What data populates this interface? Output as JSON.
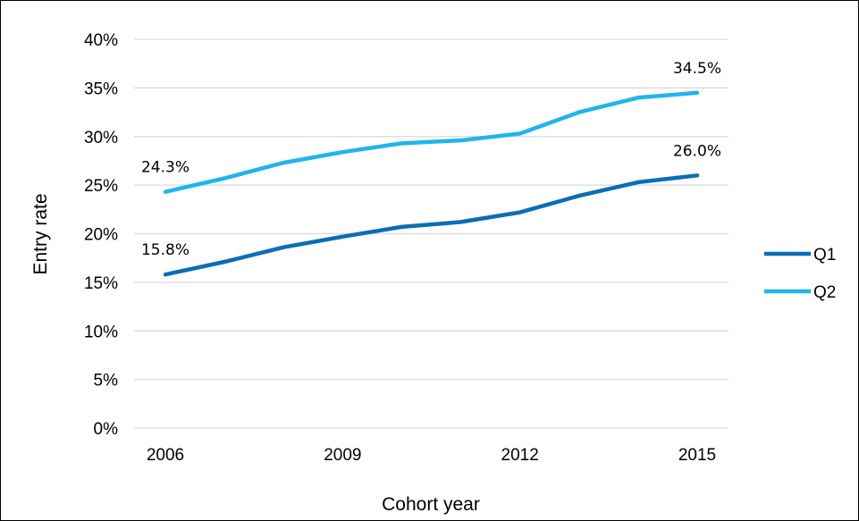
{
  "chart_data": {
    "type": "line",
    "title": "",
    "xlabel": "Cohort year",
    "ylabel": "Entry rate",
    "x": [
      2006,
      2007,
      2008,
      2009,
      2010,
      2011,
      2012,
      2013,
      2014,
      2015
    ],
    "x_ticks": [
      "2006",
      "2009",
      "2012",
      "2015"
    ],
    "y_ticks": [
      "0%",
      "5%",
      "10%",
      "15%",
      "20%",
      "25%",
      "30%",
      "35%",
      "40%"
    ],
    "ylim": [
      0,
      40
    ],
    "grid": "horizontal",
    "legend_position": "right",
    "series": [
      {
        "name": "Q1",
        "color": "#0a6eb4",
        "values": [
          15.8,
          17.1,
          18.6,
          19.7,
          20.7,
          21.2,
          22.2,
          23.9,
          25.3,
          26.0
        ],
        "labels": [
          {
            "index": 0,
            "text": "15.8%"
          },
          {
            "index": 9,
            "text": "26.0%"
          }
        ]
      },
      {
        "name": "Q2",
        "color": "#21b5ea",
        "values": [
          24.3,
          25.7,
          27.3,
          28.4,
          29.3,
          29.6,
          30.3,
          32.5,
          34.0,
          34.5
        ],
        "labels": [
          {
            "index": 0,
            "text": "24.3%"
          },
          {
            "index": 9,
            "text": "34.5%"
          }
        ]
      }
    ]
  }
}
